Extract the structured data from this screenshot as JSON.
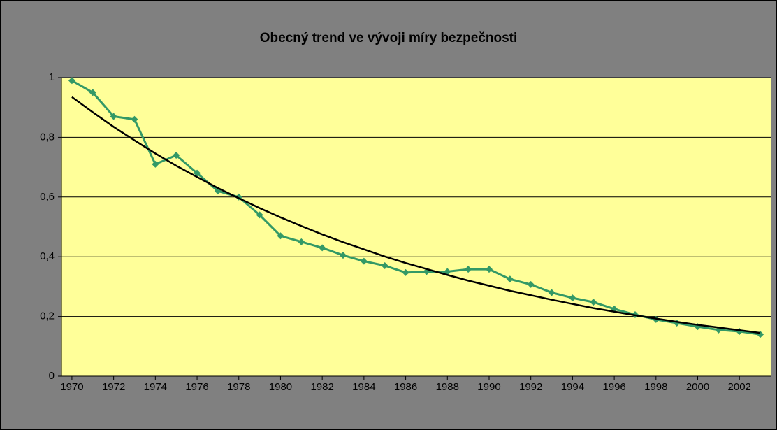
{
  "chart_data": {
    "type": "line",
    "title": "Obecný trend ve vývoji míry bezpečnosti",
    "x": [
      1970,
      1971,
      1972,
      1973,
      1974,
      1975,
      1976,
      1977,
      1978,
      1979,
      1980,
      1981,
      1982,
      1983,
      1984,
      1985,
      1986,
      1987,
      1988,
      1989,
      1990,
      1991,
      1992,
      1993,
      1994,
      1995,
      1996,
      1997,
      1998,
      1999,
      2000,
      2001,
      2002,
      2003
    ],
    "xlim": [
      1969.5,
      2003.5
    ],
    "xticks": [
      1970,
      1972,
      1974,
      1976,
      1978,
      1980,
      1982,
      1984,
      1986,
      1988,
      1990,
      1992,
      1994,
      1996,
      1998,
      2000,
      2002
    ],
    "ylim": [
      0,
      1
    ],
    "yticks": [
      0,
      {
        "value": 0.2,
        "label": "0,2"
      },
      {
        "value": 0.4,
        "label": "0,4"
      },
      {
        "value": 0.6,
        "label": "0,6"
      },
      {
        "value": 0.8,
        "label": "0,8"
      },
      1
    ],
    "grid": true,
    "series": [
      {
        "color": "#339966",
        "marker": "diamond",
        "values": [
          0.99,
          0.95,
          0.87,
          0.86,
          0.71,
          0.74,
          0.68,
          0.62,
          0.6,
          0.54,
          0.47,
          0.45,
          0.43,
          0.405,
          0.385,
          0.37,
          0.347,
          0.35,
          0.35,
          0.358,
          0.358,
          0.325,
          0.307,
          0.28,
          0.262,
          0.248,
          0.225,
          0.206,
          0.19,
          0.178,
          0.166,
          0.155,
          0.15,
          0.14
        ]
      },
      {
        "color": "#000000",
        "values": [
          0.935,
          0.884,
          0.835,
          0.79,
          0.746,
          0.705,
          0.667,
          0.63,
          0.596,
          0.563,
          0.532,
          0.503,
          0.475,
          0.449,
          0.425,
          0.401,
          0.379,
          0.359,
          0.339,
          0.32,
          0.303,
          0.286,
          0.271,
          0.256,
          0.242,
          0.228,
          0.216,
          0.204,
          0.193,
          0.182,
          0.172,
          0.163,
          0.154,
          0.145
        ]
      }
    ]
  }
}
